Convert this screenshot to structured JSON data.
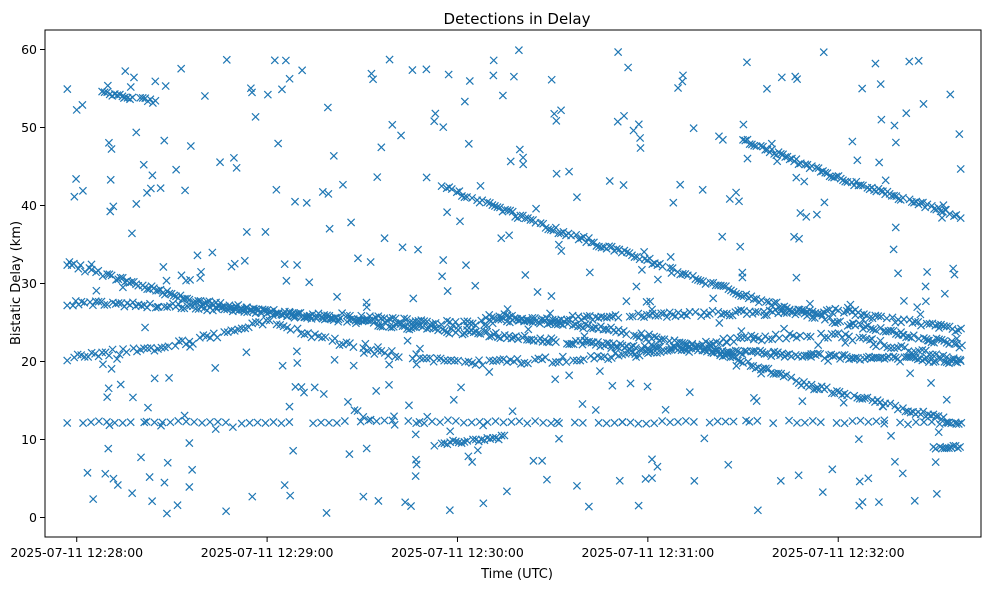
{
  "chart_data": {
    "type": "scatter",
    "title": "Detections in Delay",
    "xlabel": "Time (UTC)",
    "ylabel": "Bistatic Delay (km)",
    "marker": "x",
    "color": "#1f77b4",
    "grid": false,
    "legend": "none",
    "xlim": [
      "2025-07-11 12:27:50",
      "2025-07-11 12:32:45"
    ],
    "ylim": [
      -2.5,
      62.5
    ],
    "x_ticks": [
      "2025-07-11 12:28:00",
      "2025-07-11 12:29:00",
      "2025-07-11 12:30:00",
      "2025-07-11 12:31:00",
      "2025-07-11 12:32:00"
    ],
    "y_ticks": [
      0,
      10,
      20,
      30,
      40,
      50,
      60
    ],
    "x_range": [
      "2025-07-11 12:27:57",
      "2025-07-11 12:32:39"
    ],
    "tracks": [
      {
        "x": [
          "2025-07-11 12:27:57",
          "2025-07-11 12:28:40",
          "2025-07-11 12:29:20",
          "2025-07-11 12:30:00",
          "2025-07-11 12:30:50",
          "2025-07-11 12:31:40",
          "2025-07-11 12:32:39"
        ],
        "y": [
          32.5,
          27.5,
          25.5,
          23.8,
          22.0,
          21.0,
          20.0
        ],
        "spacing_s": 0.7,
        "jitter": 0.35
      },
      {
        "x": [
          "2025-07-11 12:27:57",
          "2025-07-11 12:28:30",
          "2025-07-11 12:29:10",
          "2025-07-11 12:30:00",
          "2025-07-11 12:31:00",
          "2025-07-11 12:32:00",
          "2025-07-11 12:32:39"
        ],
        "y": [
          27.5,
          27.2,
          26.0,
          24.8,
          26.0,
          26.5,
          24.0
        ],
        "spacing_s": 0.9,
        "jitter": 0.35
      },
      {
        "x": [
          "2025-07-11 12:27:57",
          "2025-07-11 12:28:30",
          "2025-07-11 12:29:00",
          "2025-07-11 12:29:30",
          "2025-07-11 12:30:00",
          "2025-07-11 12:30:30",
          "2025-07-11 12:31:00",
          "2025-07-11 12:31:30",
          "2025-07-11 12:32:00",
          "2025-07-11 12:32:39"
        ],
        "y": [
          20.5,
          22.0,
          25.0,
          21.5,
          19.8,
          20.2,
          21.0,
          23.0,
          23.5,
          20.0
        ],
        "spacing_s": 1.1,
        "jitter": 0.4
      },
      {
        "x": [
          "2025-07-11 12:29:55",
          "2025-07-11 12:30:30",
          "2025-07-11 12:31:00",
          "2025-07-11 12:31:30",
          "2025-07-11 12:32:00",
          "2025-07-11 12:32:39"
        ],
        "y": [
          42.5,
          37.0,
          33.0,
          28.5,
          25.0,
          22.0
        ],
        "spacing_s": 0.8,
        "jitter": 0.35
      },
      {
        "x": [
          "2025-07-11 12:30:10",
          "2025-07-11 12:30:50",
          "2025-07-11 12:31:20",
          "2025-07-11 12:31:50",
          "2025-07-11 12:32:20",
          "2025-07-11 12:32:39"
        ],
        "y": [
          26.0,
          24.0,
          21.5,
          17.0,
          14.0,
          12.0
        ],
        "spacing_s": 0.8,
        "jitter": 0.35
      },
      {
        "x": [
          "2025-07-11 12:31:30",
          "2025-07-11 12:32:00",
          "2025-07-11 12:32:39"
        ],
        "y": [
          48.5,
          43.5,
          38.5
        ],
        "spacing_s": 0.7,
        "jitter": 0.3
      },
      {
        "x": [
          "2025-07-11 12:27:57",
          "2025-07-11 12:29:00",
          "2025-07-11 12:30:00",
          "2025-07-11 12:31:00",
          "2025-07-11 12:32:00",
          "2025-07-11 12:32:39"
        ],
        "y": [
          12.2,
          12.2,
          12.3,
          12.2,
          12.3,
          12.0
        ],
        "spacing_s": 2.5,
        "jitter": 0.2
      },
      {
        "x": [
          "2025-07-11 12:28:08",
          "2025-07-11 12:28:25"
        ],
        "y": [
          54.5,
          53.3
        ],
        "spacing_s": 0.8,
        "jitter": 0.25
      },
      {
        "x": [
          "2025-07-11 12:29:55",
          "2025-07-11 12:30:15"
        ],
        "y": [
          9.5,
          10.3
        ],
        "spacing_s": 0.9,
        "jitter": 0.25
      },
      {
        "x": [
          "2025-07-11 12:32:30",
          "2025-07-11 12:32:39"
        ],
        "y": [
          9.0,
          9.0
        ],
        "spacing_s": 0.7,
        "jitter": 0.2
      }
    ],
    "noise_points": 420,
    "noise_seed": 7
  }
}
